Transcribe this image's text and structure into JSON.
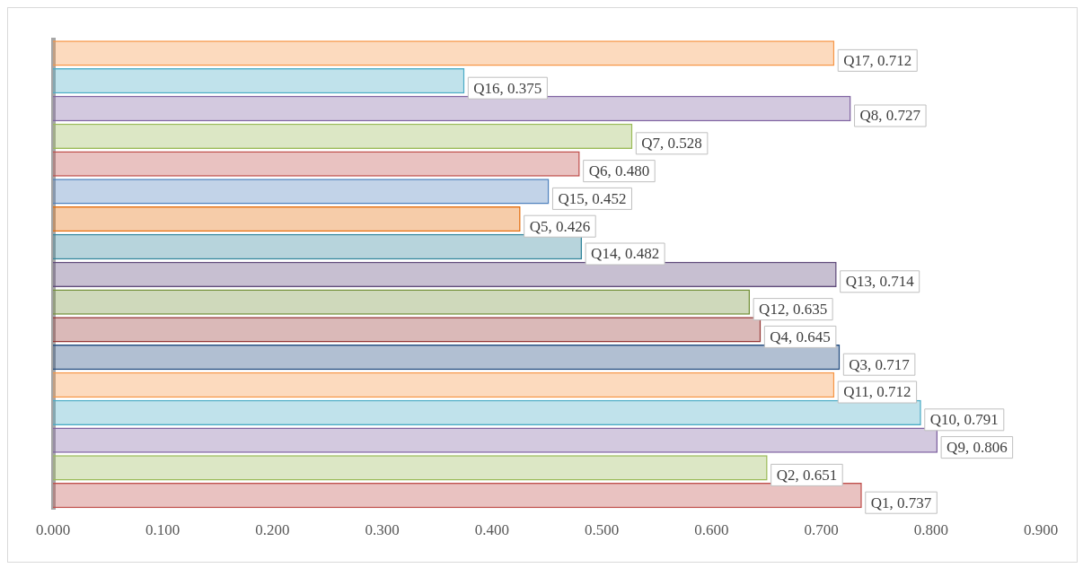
{
  "chart_data": {
    "type": "bar",
    "orientation": "horizontal",
    "categories": [
      null,
      null,
      null,
      null,
      null,
      null,
      null,
      null,
      null,
      null,
      null,
      null,
      null,
      null,
      null,
      null,
      null
    ],
    "values": [
      0.712,
      0.375,
      0.727,
      0.528,
      0.48,
      0.452,
      0.426,
      0.482,
      0.714,
      0.635,
      0.645,
      0.717,
      0.712,
      0.791,
      0.806,
      0.651,
      0.737
    ],
    "colors": [
      "#f79646",
      "#4bacc6",
      "#8064a2",
      "#9bbb59",
      "#c0504d",
      "#4f81bd",
      "#e46c0a",
      "#31859c",
      "#5f497a",
      "#76923c",
      "#953735",
      "#1f497d",
      "#f79646",
      "#4bacc6",
      "#8064a2",
      "#9bbb59",
      "#c0504d"
    ],
    "value_labels": [
      "Q17, 0.712",
      "Q16, 0.375",
      "Q8, 0.727",
      "Q7, 0.528",
      "Q6, 0.480",
      "Q15, 0.452",
      "Q5, 0.426",
      "Q14, 0.482",
      "Q13, 0.714",
      "Q12, 0.635",
      "Q4, 0.645",
      "Q3, 0.717",
      "Q11, 0.712",
      "Q10, 0.791",
      "Q9, 0.806",
      "Q2, 0.651",
      "Q1, 0.737"
    ],
    "xlim": [
      0,
      0.9
    ],
    "xticks": [
      {
        "value": 0,
        "label": "0.000"
      },
      {
        "value": 0.1,
        "label": "0.100"
      },
      {
        "value": 0.2,
        "label": "0.200"
      },
      {
        "value": 0.3,
        "label": "0.300"
      },
      {
        "value": 0.4,
        "label": "0.400"
      },
      {
        "value": 0.5,
        "label": "0.500"
      },
      {
        "value": 0.6,
        "label": "0.600"
      },
      {
        "value": 0.7,
        "label": "0.700"
      },
      {
        "value": 0.8,
        "label": "0.800"
      },
      {
        "value": 0.9,
        "label": "0.900"
      }
    ],
    "tick_labels": "x",
    "grid": false,
    "legend": false
  }
}
